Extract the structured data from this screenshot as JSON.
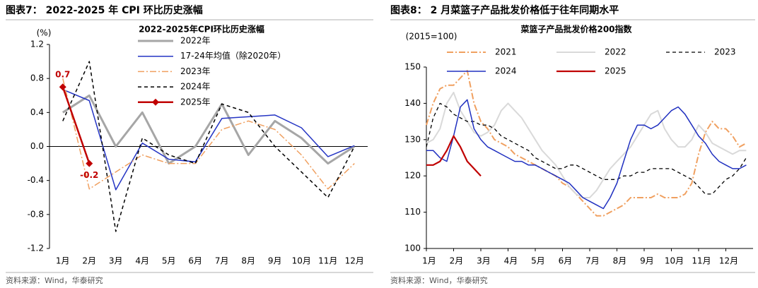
{
  "headers": [
    "图表7：  2022-2025 年 CPI 环比历史涨幅",
    "图表8：  2 月菜篮子产品批发价格低于往年同期水平"
  ],
  "sources": [
    "资料来源：Wind，华泰研究",
    "资料来源：Wind，华泰研究"
  ],
  "chart_data": [
    {
      "type": "line",
      "title": "2022-2025年CPI环比历史涨幅",
      "ylabel": "(%)",
      "categories": [
        "1月",
        "2月",
        "3月",
        "4月",
        "5月",
        "6月",
        "7月",
        "8月",
        "9月",
        "10月",
        "11月",
        "12月"
      ],
      "ylim": [
        -1.2,
        1.2
      ],
      "yticks": [
        1.2,
        0.8,
        0.4,
        {
          "value": 0,
          "label": "0.0"
        },
        -0.4,
        -0.8,
        -1.2
      ],
      "legend": "upper center",
      "series": [
        {
          "name": "2022年",
          "color": "#a6a6a6",
          "width": 3,
          "dash": "solid",
          "values": [
            0.4,
            0.6,
            0.0,
            0.4,
            -0.2,
            0.0,
            0.5,
            -0.1,
            0.3,
            0.1,
            -0.2,
            0.0
          ]
        },
        {
          "name": "17-24年均值（除2020年）",
          "color": "#2535c4",
          "width": 1.5,
          "dash": "solid",
          "values": [
            0.67,
            0.54,
            -0.51,
            0.04,
            -0.15,
            -0.18,
            0.33,
            0.35,
            0.37,
            0.22,
            -0.12,
            0.01
          ]
        },
        {
          "name": "2023年",
          "color": "#f0a060",
          "width": 1.5,
          "dash": "dashdot",
          "values": [
            0.8,
            -0.5,
            -0.3,
            -0.1,
            -0.2,
            -0.2,
            0.2,
            0.3,
            0.2,
            -0.1,
            -0.5,
            -0.2
          ]
        },
        {
          "name": "2024年",
          "color": "#000000",
          "width": 1.5,
          "dash": "dash",
          "values": [
            0.3,
            1.0,
            -1.0,
            0.1,
            -0.1,
            -0.2,
            0.5,
            0.4,
            0.0,
            -0.3,
            -0.6,
            0.0
          ]
        },
        {
          "name": "2025年",
          "color": "#c00000",
          "width": 2.5,
          "dash": "solid",
          "marker": "diamond",
          "data_labels": true,
          "values": [
            0.7,
            -0.2,
            null,
            null,
            null,
            null,
            null,
            null,
            null,
            null,
            null,
            null
          ]
        }
      ]
    },
    {
      "type": "line",
      "title": "菜篮子产品批发价格200指数",
      "ylabel": "(2015=100)",
      "categories": [
        "1月",
        null,
        null,
        null,
        "2月",
        null,
        null,
        null,
        "3月",
        null,
        null,
        null,
        "4月",
        null,
        null,
        null,
        "5月",
        null,
        null,
        null,
        "6月",
        null,
        null,
        null,
        "7月",
        null,
        null,
        null,
        "8月",
        null,
        null,
        null,
        "9月",
        null,
        null,
        null,
        "10月",
        null,
        null,
        null,
        "11月",
        null,
        null,
        null,
        "12月",
        null,
        null,
        null
      ],
      "ylim": [
        100,
        150
      ],
      "yticks": [
        150,
        140,
        130,
        120,
        110,
        100
      ],
      "legend": "top",
      "series": [
        {
          "name": "2021",
          "color": "#f0a060",
          "width": 2,
          "dash": "dashdot",
          "values": [
            134,
            140,
            144,
            145,
            145,
            147,
            149,
            140,
            135,
            133,
            130,
            129,
            128,
            126,
            125,
            124,
            123,
            122,
            121,
            120,
            118,
            117,
            115,
            113,
            111,
            109,
            109,
            110,
            111,
            112,
            114,
            114,
            114,
            114,
            115,
            114,
            114,
            114,
            115,
            118,
            126,
            132,
            135,
            133,
            133,
            131,
            128,
            129
          ]
        },
        {
          "name": "2022",
          "color": "#d9d9d9",
          "width": 2,
          "dash": "solid",
          "values": [
            129,
            130,
            133,
            140,
            143,
            138,
            135,
            132,
            131,
            132,
            134,
            138,
            140,
            138,
            136,
            133,
            130,
            127,
            125,
            123,
            120,
            117,
            115,
            114,
            114,
            116,
            119,
            122,
            124,
            126,
            128,
            131,
            134,
            137,
            138,
            133,
            130,
            128,
            128,
            130,
            134,
            132,
            129,
            128,
            127,
            126,
            127,
            127
          ]
        },
        {
          "name": "2023",
          "color": "#000000",
          "width": 1.3,
          "dash": "dash",
          "values": [
            128,
            136,
            140,
            139,
            137,
            136,
            135,
            135,
            134,
            134,
            133,
            131,
            130,
            129,
            128,
            127,
            125,
            124,
            123,
            122,
            122,
            123,
            123,
            122,
            121,
            120,
            119,
            119,
            119,
            120,
            120,
            121,
            121,
            122,
            122,
            122,
            122,
            121,
            120,
            119,
            117,
            115,
            115,
            117,
            119,
            120,
            122,
            125
          ]
        },
        {
          "name": "2024",
          "color": "#2030c0",
          "width": 1.5,
          "dash": "solid",
          "values": [
            127,
            127,
            125,
            124,
            131,
            139,
            141,
            133,
            130,
            128,
            127,
            126,
            125,
            124,
            124,
            123,
            123,
            122,
            121,
            120,
            119,
            118,
            116,
            114,
            113,
            112,
            111,
            114,
            118,
            124,
            130,
            134,
            134,
            133,
            134,
            136,
            138,
            139,
            137,
            134,
            131,
            129,
            126,
            124,
            123,
            122,
            122,
            123
          ]
        },
        {
          "name": "2025",
          "color": "#c00000",
          "width": 2.2,
          "dash": "solid",
          "values": [
            123,
            123,
            124,
            127,
            131,
            128,
            124,
            122,
            120,
            null,
            null,
            null,
            null,
            null,
            null,
            null,
            null,
            null,
            null,
            null,
            null,
            null,
            null,
            null,
            null,
            null,
            null,
            null,
            null,
            null,
            null,
            null,
            null,
            null,
            null,
            null,
            null,
            null,
            null,
            null,
            null,
            null,
            null,
            null,
            null,
            null,
            null,
            null
          ]
        }
      ]
    }
  ]
}
